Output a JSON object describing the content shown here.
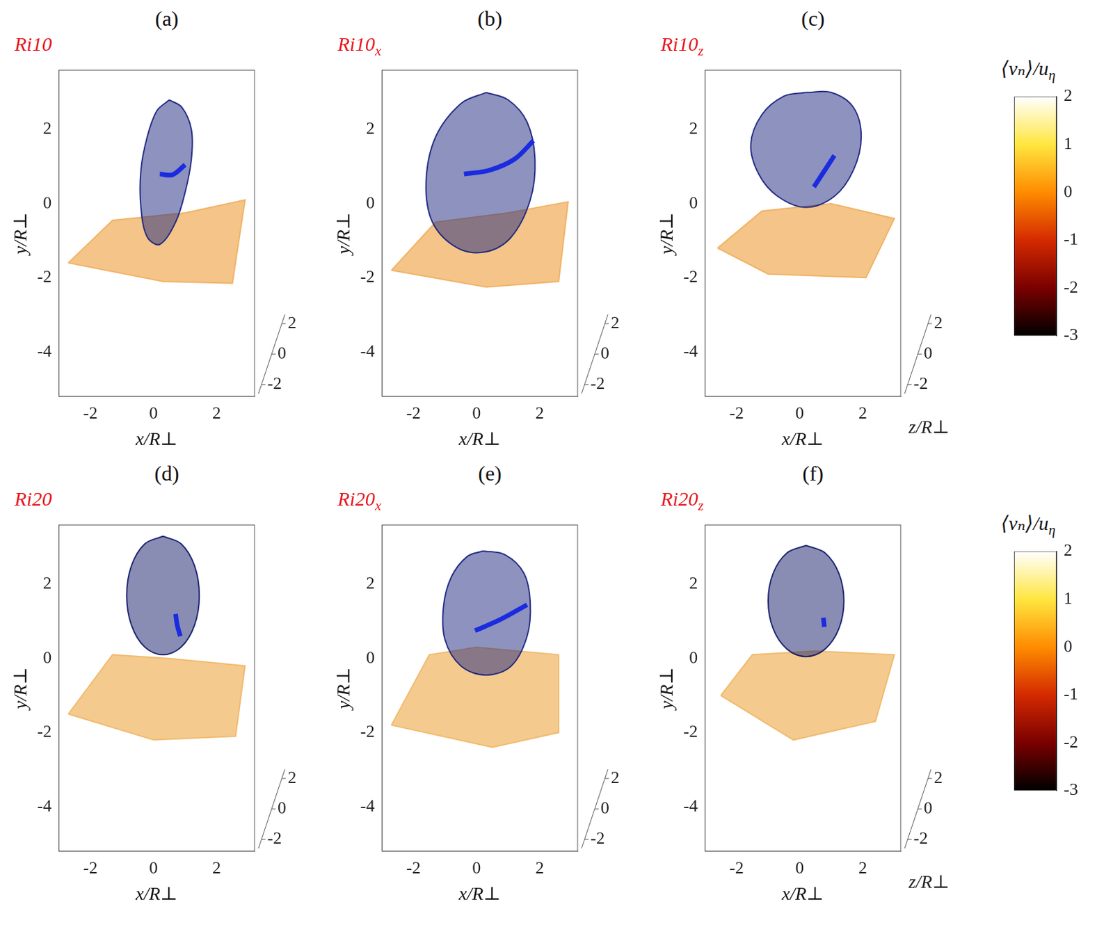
{
  "chart_data": [
    {
      "type": "scatter",
      "panel": "(a)",
      "title": "Ri10",
      "xlabel": "x/R⊥",
      "ylabel": "y/R⊥",
      "zlabel": null,
      "xlim": [
        -3,
        3.2
      ],
      "ylim": [
        -5.2,
        3.6
      ],
      "zlim": [
        -2.6,
        2.6
      ],
      "xticks": [
        -2,
        0,
        2
      ],
      "yticks": [
        -4,
        -2,
        0,
        2
      ],
      "zticks": [
        -2,
        0,
        2
      ],
      "grid": false,
      "series": [
        {
          "type": "polygon",
          "color": "#f0b060",
          "x": [
            -2.7,
            0.3,
            2.5,
            2.9,
            1.0,
            -1.3
          ],
          "values": [
            -1.6,
            -2.1,
            -2.15,
            0.1,
            -0.25,
            -0.45
          ]
        },
        {
          "type": "area",
          "color": "#1b2580",
          "x": [
            0.5,
            0.9,
            1.2,
            1.2,
            1.0,
            0.7,
            0.2,
            -0.2,
            -0.4,
            -0.4,
            -0.2,
            0.1
          ],
          "values": [
            2.8,
            2.6,
            2.0,
            1.2,
            0.3,
            -0.5,
            -1.1,
            -0.9,
            -0.1,
            0.9,
            1.8,
            2.5
          ]
        },
        {
          "type": "line",
          "color": "#1a2be0",
          "x": [
            0.2,
            0.6,
            1.0
          ],
          "values": [
            0.8,
            0.78,
            1.05
          ]
        }
      ]
    },
    {
      "type": "scatter",
      "panel": "(b)",
      "title": "Ri10",
      "title_subscript": "x",
      "xlabel": "x/R⊥",
      "ylabel": "y/R⊥",
      "xlim": [
        -3,
        3.2
      ],
      "ylim": [
        -5.2,
        3.6
      ],
      "zlim": [
        -2.6,
        2.6
      ],
      "xticks": [
        -2,
        0,
        2
      ],
      "yticks": [
        -4,
        -2,
        0,
        2
      ],
      "zticks": [
        -2,
        0,
        2
      ],
      "grid": false,
      "series": [
        {
          "type": "polygon",
          "color": "#f0b060",
          "x": [
            -2.7,
            0.3,
            2.6,
            2.9,
            1.0,
            -1.3
          ],
          "values": [
            -1.8,
            -2.25,
            -2.1,
            0.05,
            -0.25,
            -0.5
          ]
        },
        {
          "type": "area",
          "color": "#1b2580",
          "x": [
            0.3,
            1.0,
            1.6,
            1.85,
            1.7,
            1.1,
            0.3,
            -0.6,
            -1.4,
            -1.6,
            -1.3,
            -0.5
          ],
          "values": [
            3.0,
            2.8,
            2.2,
            1.2,
            0.1,
            -0.9,
            -1.3,
            -1.2,
            -0.5,
            0.6,
            1.8,
            2.7
          ]
        },
        {
          "type": "line",
          "color": "#1a2be0",
          "x": [
            -0.4,
            0.4,
            1.2,
            1.8
          ],
          "values": [
            0.8,
            0.9,
            1.2,
            1.7
          ]
        }
      ]
    },
    {
      "type": "scatter",
      "panel": "(c)",
      "title": "Ri10",
      "title_subscript": "z",
      "xlabel": "x/R⊥",
      "ylabel": "y/R⊥",
      "zlabel": "z/R⊥",
      "xlim": [
        -3,
        3.2
      ],
      "ylim": [
        -5.2,
        3.6
      ],
      "zlim": [
        -2.6,
        2.6
      ],
      "xticks": [
        -2,
        0,
        2
      ],
      "yticks": [
        -4,
        -2,
        0,
        2
      ],
      "zticks": [
        -2,
        0,
        2
      ],
      "grid": false,
      "series": [
        {
          "type": "polygon",
          "color": "#f0b060",
          "x": [
            -2.6,
            -1.0,
            2.1,
            3.0,
            1.0,
            -1.2
          ],
          "values": [
            -1.2,
            -1.9,
            -2.0,
            -0.4,
            0.0,
            -0.2
          ]
        },
        {
          "type": "area",
          "color": "#1b2580",
          "x": [
            0.2,
            1.0,
            1.7,
            1.95,
            1.7,
            1.1,
            0.2,
            -0.7,
            -1.3,
            -1.55,
            -1.2,
            -0.5
          ],
          "values": [
            3.0,
            3.0,
            2.6,
            1.8,
            0.9,
            0.2,
            -0.1,
            0.2,
            0.8,
            1.6,
            2.4,
            2.9
          ]
        },
        {
          "type": "line",
          "color": "#1a2be0",
          "x": [
            0.45,
            1.1
          ],
          "values": [
            0.45,
            1.3
          ]
        }
      ]
    },
    {
      "type": "colorbar",
      "label": "⟨vₙ⟩/u",
      "label_subscript": "η",
      "ylim": [
        -3,
        2
      ],
      "yticks": [
        -3,
        -2,
        -1,
        0,
        1,
        2
      ],
      "colors": [
        "#000000",
        "#7a0000",
        "#d42a00",
        "#ff8c00",
        "#ffe640",
        "#ffffff"
      ]
    },
    {
      "type": "scatter",
      "panel": "(d)",
      "title": "Ri20",
      "xlabel": "x/R⊥",
      "ylabel": "y/R⊥",
      "xlim": [
        -3,
        3.2
      ],
      "ylim": [
        -5.2,
        3.6
      ],
      "zlim": [
        -2.6,
        2.6
      ],
      "xticks": [
        -2,
        0,
        2
      ],
      "yticks": [
        -4,
        -2,
        0,
        2
      ],
      "zticks": [
        -2,
        0,
        2
      ],
      "grid": false,
      "series": [
        {
          "type": "polygon",
          "color": "#f0b868",
          "x": [
            -2.7,
            0.0,
            2.6,
            2.9,
            0.5,
            -1.3
          ],
          "values": [
            -1.5,
            -2.2,
            -2.1,
            -0.2,
            0.0,
            0.1
          ]
        },
        {
          "type": "area",
          "color": "#141c6a",
          "x": [
            0.3,
            0.88,
            1.3,
            1.45,
            1.3,
            0.88,
            0.3,
            -0.28,
            -0.7,
            -0.85,
            -0.7,
            -0.28
          ],
          "values": [
            3.3,
            3.09,
            2.5,
            1.7,
            0.9,
            0.31,
            0.1,
            0.31,
            0.9,
            1.7,
            2.5,
            3.09
          ]
        },
        {
          "type": "line",
          "color": "#1a2be0",
          "x": [
            0.7,
            0.75,
            0.85
          ],
          "values": [
            1.2,
            0.9,
            0.6
          ]
        }
      ]
    },
    {
      "type": "scatter",
      "panel": "(e)",
      "title": "Ri20",
      "title_subscript": "x",
      "xlabel": "x/R⊥",
      "ylabel": "y/R⊥",
      "xlim": [
        -3,
        3.2
      ],
      "ylim": [
        -5.2,
        3.6
      ],
      "zlim": [
        -2.6,
        2.6
      ],
      "xticks": [
        -2,
        0,
        2
      ],
      "yticks": [
        -4,
        -2,
        0,
        2
      ],
      "zticks": [
        -2,
        0,
        2
      ],
      "grid": false,
      "series": [
        {
          "type": "polygon",
          "color": "#f0b868",
          "x": [
            -2.7,
            0.5,
            2.6,
            2.6,
            0.0,
            -1.5
          ],
          "values": [
            -1.8,
            -2.4,
            -2.0,
            0.1,
            0.3,
            0.1
          ]
        },
        {
          "type": "area",
          "color": "#1b2580",
          "x": [
            0.2,
            0.9,
            1.5,
            1.7,
            1.6,
            1.1,
            0.3,
            -0.5,
            -1.0,
            -1.05,
            -0.8,
            -0.3
          ],
          "values": [
            2.9,
            2.8,
            2.3,
            1.5,
            0.6,
            -0.2,
            -0.45,
            -0.2,
            0.5,
            1.4,
            2.2,
            2.75
          ]
        },
        {
          "type": "line",
          "color": "#1a2be0",
          "x": [
            -0.05,
            0.75,
            1.6
          ],
          "values": [
            0.75,
            1.05,
            1.45
          ]
        }
      ]
    },
    {
      "type": "scatter",
      "panel": "(f)",
      "title": "Ri20",
      "title_subscript": "z",
      "xlabel": "x/R⊥",
      "ylabel": "y/R⊥",
      "zlabel": "z/R⊥",
      "xlim": [
        -3,
        3.2
      ],
      "ylim": [
        -5.2,
        3.6
      ],
      "zlim": [
        -2.6,
        2.6
      ],
      "xticks": [
        -2,
        0,
        2
      ],
      "yticks": [
        -4,
        -2,
        0,
        2
      ],
      "zticks": [
        -2,
        0,
        2
      ],
      "grid": false,
      "series": [
        {
          "type": "polygon",
          "color": "#f0b868",
          "x": [
            -2.5,
            -0.2,
            2.4,
            3.0,
            0.5,
            -1.5
          ],
          "values": [
            -1.0,
            -2.2,
            -1.7,
            0.1,
            0.2,
            0.1
          ]
        },
        {
          "type": "area",
          "color": "#141c6a",
          "x": [
            0.2,
            0.8,
            1.24,
            1.4,
            1.24,
            0.8,
            0.2,
            -0.4,
            -0.84,
            -1.0,
            -0.84,
            -0.4
          ],
          "values": [
            3.05,
            2.85,
            2.3,
            1.55,
            0.8,
            0.25,
            0.05,
            0.25,
            0.8,
            1.55,
            2.3,
            2.85
          ]
        },
        {
          "type": "line",
          "color": "#1a2be0",
          "x": [
            0.75,
            0.78
          ],
          "values": [
            1.1,
            0.85
          ]
        }
      ]
    },
    {
      "type": "colorbar",
      "label": "⟨vₙ⟩/u",
      "label_subscript": "η",
      "ylim": [
        -3,
        2
      ],
      "yticks": [
        -3,
        -2,
        -1,
        0,
        1,
        2
      ],
      "colors": [
        "#000000",
        "#7a0000",
        "#d42a00",
        "#ff8c00",
        "#ffe640",
        "#ffffff"
      ]
    }
  ]
}
